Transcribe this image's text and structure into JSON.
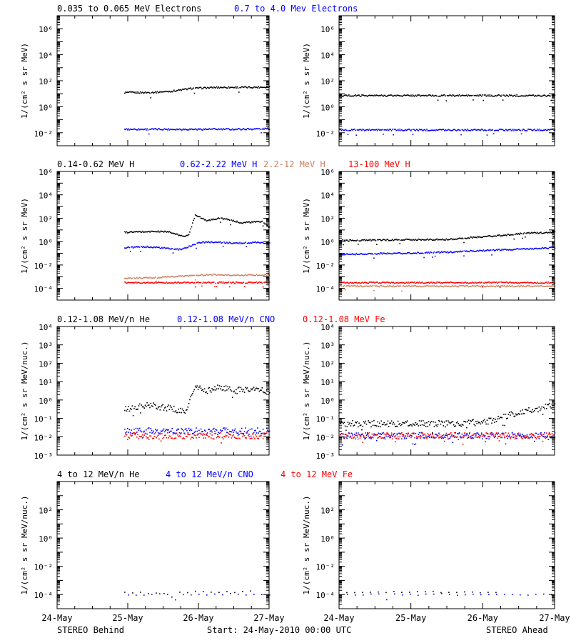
{
  "colors": {
    "black": "#000000",
    "blue": "#0000ff",
    "tan": "#cd7f5f",
    "red": "#ff0000"
  },
  "footer": {
    "left": "STEREO Behind",
    "center": "Start: 24-May-2010 00:00 UTC",
    "right": "STEREO Ahead"
  },
  "chart_data": [
    {
      "type": "scatter",
      "panel": "electrons",
      "y_scale": "log",
      "ylabel": "1/(cm² s sr MeV)",
      "ylim": [
        0.001,
        10000000
      ],
      "y_ticks": [
        {
          "value": 0.01,
          "label": "10⁻²"
        },
        {
          "value": 1,
          "label": "10⁰"
        },
        {
          "value": 100,
          "label": "10²"
        },
        {
          "value": 10000,
          "label": "10⁴"
        },
        {
          "value": 1000000,
          "label": "10⁶"
        }
      ],
      "x_ticks": [
        "24-May",
        "25-May",
        "26-May",
        "27-May"
      ],
      "xlim": [
        0,
        3
      ],
      "legend": [
        {
          "name": "0.035 to 0.065 MeV Electrons",
          "color": "#000000"
        },
        {
          "name": "0.7 to 4.0 Mev Electrons",
          "color": "#0000ff"
        }
      ],
      "behind": {
        "series": [
          {
            "name": "0.035 to 0.065 MeV Electrons",
            "color": "#000000",
            "x": [
              0.95,
              1.3,
              1.6,
              1.9,
              2.3,
              2.7,
              3.0
            ],
            "y": [
              12,
              12,
              15,
              25,
              30,
              30,
              32
            ]
          },
          {
            "name": "0.7 to 4.0 Mev Electrons",
            "color": "#0000ff",
            "x": [
              0.95,
              1.5,
              2.0,
              2.5,
              3.0
            ],
            "y": [
              0.018,
              0.018,
              0.018,
              0.018,
              0.02
            ]
          }
        ]
      },
      "ahead": {
        "series": [
          {
            "name": "0.035 to 0.065 MeV Electrons",
            "color": "#000000",
            "x": [
              0,
              0.5,
              1.0,
              1.5,
              2.0,
              2.5,
              3.0
            ],
            "y": [
              7,
              7,
              7,
              7,
              7,
              7,
              7
            ]
          },
          {
            "name": "0.7 to 4.0 Mev Electrons",
            "color": "#0000ff",
            "x": [
              0,
              0.5,
              1.0,
              1.5,
              2.0,
              2.5,
              3.0
            ],
            "y": [
              0.016,
              0.016,
              0.016,
              0.016,
              0.016,
              0.016,
              0.016
            ]
          }
        ]
      }
    },
    {
      "type": "scatter",
      "panel": "protons",
      "y_scale": "log",
      "ylabel": "1/(cm² s sr MeV)",
      "ylim": [
        1e-05,
        1000000
      ],
      "y_ticks": [
        {
          "value": 0.0001,
          "label": "10⁻⁴"
        },
        {
          "value": 0.01,
          "label": "10⁻²"
        },
        {
          "value": 1,
          "label": "10⁰"
        },
        {
          "value": 100,
          "label": "10²"
        },
        {
          "value": 10000,
          "label": "10⁴"
        },
        {
          "value": 1000000,
          "label": "10⁶"
        }
      ],
      "x_ticks": [
        "24-May",
        "25-May",
        "26-May",
        "27-May"
      ],
      "xlim": [
        0,
        3
      ],
      "legend": [
        {
          "name": "0.14-0.62 MeV H",
          "color": "#000000"
        },
        {
          "name": "0.62-2.22 MeV H",
          "color": "#0000ff"
        },
        {
          "name": "2.2-12 MeV H",
          "color": "#cd7f5f"
        },
        {
          "name": "13-100 MeV H",
          "color": "#ff0000"
        }
      ],
      "behind": {
        "series": [
          {
            "name": "0.14-0.62 MeV H",
            "color": "#000000",
            "x": [
              0.95,
              1.3,
              1.55,
              1.75,
              1.85,
              1.95,
              2.1,
              2.3,
              2.6,
              2.9,
              3.0
            ],
            "y": [
              6,
              7,
              7,
              3,
              3,
              200,
              60,
              100,
              40,
              50,
              15
            ]
          },
          {
            "name": "0.62-2.22 MeV H",
            "color": "#0000ff",
            "x": [
              0.95,
              1.3,
              1.55,
              1.75,
              2.0,
              2.2,
              2.5,
              2.8,
              3.0
            ],
            "y": [
              0.3,
              0.35,
              0.25,
              0.2,
              0.8,
              0.9,
              0.7,
              0.8,
              0.7
            ]
          },
          {
            "name": "2.2-12 MeV H",
            "color": "#cd7f5f",
            "x": [
              0.95,
              1.4,
              1.9,
              2.2,
              2.6,
              3.0
            ],
            "y": [
              0.0007,
              0.0008,
              0.0012,
              0.0014,
              0.0013,
              0.0014
            ]
          },
          {
            "name": "13-100 MeV H",
            "color": "#ff0000",
            "x": [
              0.95,
              1.5,
              2.0,
              2.5,
              3.0
            ],
            "y": [
              0.0003,
              0.0003,
              0.0003,
              0.0003,
              0.0003
            ]
          }
        ]
      },
      "ahead": {
        "series": [
          {
            "name": "0.14-0.62 MeV H",
            "color": "#000000",
            "x": [
              0,
              0.5,
              1.0,
              1.5,
              2.0,
              2.3,
              2.6,
              3.0
            ],
            "y": [
              1.2,
              1.3,
              1.4,
              1.5,
              2.5,
              3.5,
              5,
              6
            ]
          },
          {
            "name": "0.62-2.22 MeV H",
            "color": "#0000ff",
            "x": [
              0,
              0.5,
              1.0,
              1.5,
              2.0,
              2.5,
              3.0
            ],
            "y": [
              0.08,
              0.09,
              0.1,
              0.12,
              0.17,
              0.22,
              0.3
            ]
          },
          {
            "name": "2.2-12 MeV H",
            "color": "#cd7f5f",
            "x": [
              0,
              1.0,
              2.0,
              3.0
            ],
            "y": [
              0.00015,
              0.00015,
              0.00015,
              0.00015
            ]
          },
          {
            "name": "13-100 MeV H",
            "color": "#ff0000",
            "x": [
              0,
              1.0,
              2.0,
              3.0
            ],
            "y": [
              0.0003,
              0.0003,
              0.0003,
              0.0003
            ]
          }
        ]
      }
    },
    {
      "type": "scatter",
      "panel": "heavy-ions-low",
      "y_scale": "log",
      "ylabel": "1/(cm² s sr MeV/nuc.)",
      "ylim": [
        0.001,
        10000
      ],
      "y_ticks": [
        {
          "value": 0.001,
          "label": "10⁻³"
        },
        {
          "value": 0.01,
          "label": "10⁻²"
        },
        {
          "value": 0.1,
          "label": "10⁻¹"
        },
        {
          "value": 1,
          "label": "10⁰"
        },
        {
          "value": 10,
          "label": "10¹"
        },
        {
          "value": 100,
          "label": "10²"
        },
        {
          "value": 1000,
          "label": "10³"
        },
        {
          "value": 10000,
          "label": "10⁴"
        }
      ],
      "x_ticks": [
        "24-May",
        "25-May",
        "26-May",
        "27-May"
      ],
      "xlim": [
        0,
        3
      ],
      "legend": [
        {
          "name": "0.12-1.08 MeV/n He",
          "color": "#000000"
        },
        {
          "name": "0.12-1.08 MeV/n CNO",
          "color": "#0000ff"
        },
        {
          "name": "0.12-1.08 MeV Fe",
          "color": "#ff0000"
        }
      ],
      "behind": {
        "series": [
          {
            "name": "0.12-1.08 MeV/n He",
            "color": "#000000",
            "x": [
              0.95,
              1.3,
              1.6,
              1.8,
              1.95,
              2.1,
              2.3,
              2.5,
              2.7,
              3.0
            ],
            "y": [
              0.3,
              0.5,
              0.35,
              0.2,
              5,
              3,
              5,
              3,
              4,
              3
            ]
          },
          {
            "name": "0.12-1.08 MeV/n CNO",
            "color": "#0000ff",
            "x": [
              0.95,
              1.5,
              2.0,
              2.5,
              3.0
            ],
            "y": [
              0.02,
              0.02,
              0.02,
              0.02,
              0.02
            ]
          },
          {
            "name": "0.12-1.08 MeV Fe",
            "color": "#ff0000",
            "x": [
              0.95,
              1.5,
              2.0,
              2.5,
              3.0
            ],
            "y": [
              0.011,
              0.011,
              0.011,
              0.011,
              0.011
            ]
          }
        ]
      },
      "ahead": {
        "series": [
          {
            "name": "0.12-1.08 MeV/n He",
            "color": "#000000",
            "x": [
              0,
              0.5,
              1.0,
              1.5,
              2.0,
              2.3,
              2.6,
              3.0
            ],
            "y": [
              0.05,
              0.05,
              0.05,
              0.05,
              0.06,
              0.12,
              0.25,
              0.5
            ]
          },
          {
            "name": "0.12-1.08 MeV/n CNO",
            "color": "#0000ff",
            "x": [
              0,
              1.0,
              2.0,
              3.0
            ],
            "y": [
              0.011,
              0.011,
              0.011,
              0.011
            ]
          },
          {
            "name": "0.12-1.08 MeV Fe",
            "color": "#ff0000",
            "x": [
              0,
              1.0,
              2.0,
              3.0
            ],
            "y": [
              0.011,
              0.011,
              0.011,
              0.011
            ]
          }
        ]
      }
    },
    {
      "type": "scatter",
      "panel": "heavy-ions-high",
      "y_scale": "log",
      "ylabel": "1/(cm² s sr MeV/nuc.)",
      "ylim": [
        1e-05,
        10000
      ],
      "y_ticks": [
        {
          "value": 0.0001,
          "label": "10⁻⁴"
        },
        {
          "value": 0.01,
          "label": "10⁻²"
        },
        {
          "value": 1,
          "label": "10⁰"
        },
        {
          "value": 100,
          "label": "10²"
        }
      ],
      "x_ticks": [
        "24-May",
        "25-May",
        "26-May",
        "27-May"
      ],
      "xlim": [
        0,
        3
      ],
      "legend": [
        {
          "name": "4 to 12 MeV/n He",
          "color": "#000000"
        },
        {
          "name": "4 to 12 MeV/n CNO",
          "color": "#0000ff"
        },
        {
          "name": "4 to 12 MeV Fe",
          "color": "#ff0000"
        }
      ],
      "behind": {
        "series": [
          {
            "name": "4 to 12 MeV/n He",
            "color": "#000000",
            "x": [
              0.95,
              1.4,
              1.65,
              2.0,
              2.4,
              2.75
            ],
            "y": [
              0.00013,
              0.00012,
              0.00015,
              0.00015,
              0.00014,
              0.00016
            ]
          },
          {
            "name": "4 to 12 MeV/n CNO",
            "color": "#0000ff",
            "x": [
              1.0,
              1.5,
              2.0,
              2.5,
              3.0
            ],
            "y": [
              0.0001,
              0.0001,
              0.0001,
              0.0001,
              0.0001
            ]
          }
        ]
      },
      "ahead": {
        "series": [
          {
            "name": "4 to 12 MeV/n He",
            "color": "#000000",
            "x": [
              0.1,
              0.6,
              0.9,
              1.4,
              2.2
            ],
            "y": [
              0.00013,
              0.00015,
              0.00014,
              0.00015,
              0.00014
            ]
          },
          {
            "name": "4 to 12 MeV/n CNO",
            "color": "#0000ff",
            "x": [
              0,
              1.0,
              2.0,
              3.0
            ],
            "y": [
              0.0001,
              0.0001,
              0.0001,
              0.0001
            ]
          }
        ]
      }
    }
  ]
}
